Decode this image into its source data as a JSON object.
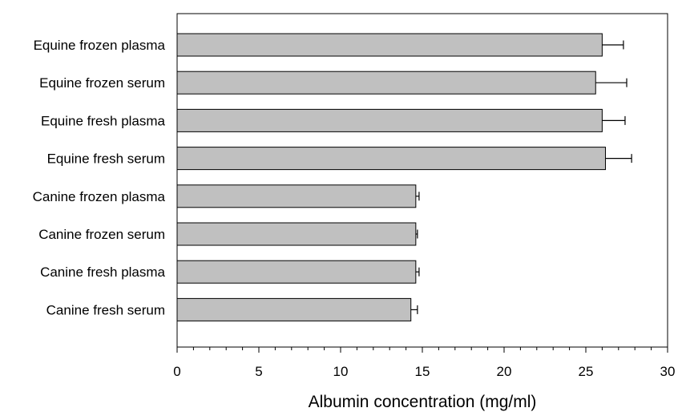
{
  "chart_data": {
    "type": "bar",
    "orientation": "horizontal",
    "categories": [
      "Equine frozen plasma",
      "Equine frozen serum",
      "Equine fresh plasma",
      "Equine fresh serum",
      "Canine frozen plasma",
      "Canine frozen serum",
      "Canine fresh plasma",
      "Canine fresh serum"
    ],
    "values": [
      26.0,
      25.6,
      26.0,
      26.2,
      14.6,
      14.6,
      14.6,
      14.3
    ],
    "error": [
      1.3,
      1.9,
      1.4,
      1.6,
      0.2,
      0.1,
      0.2,
      0.4
    ],
    "xlabel": "Albumin concentration (mg/ml)",
    "ylabel": "",
    "xlim": [
      0,
      30
    ],
    "xticks": [
      "0",
      "5",
      "10",
      "15",
      "20",
      "25",
      "30"
    ],
    "minor_tick_step": 1,
    "grid": false,
    "bar_color": "#c0c0c0",
    "bar_edge_color": "#000000"
  }
}
